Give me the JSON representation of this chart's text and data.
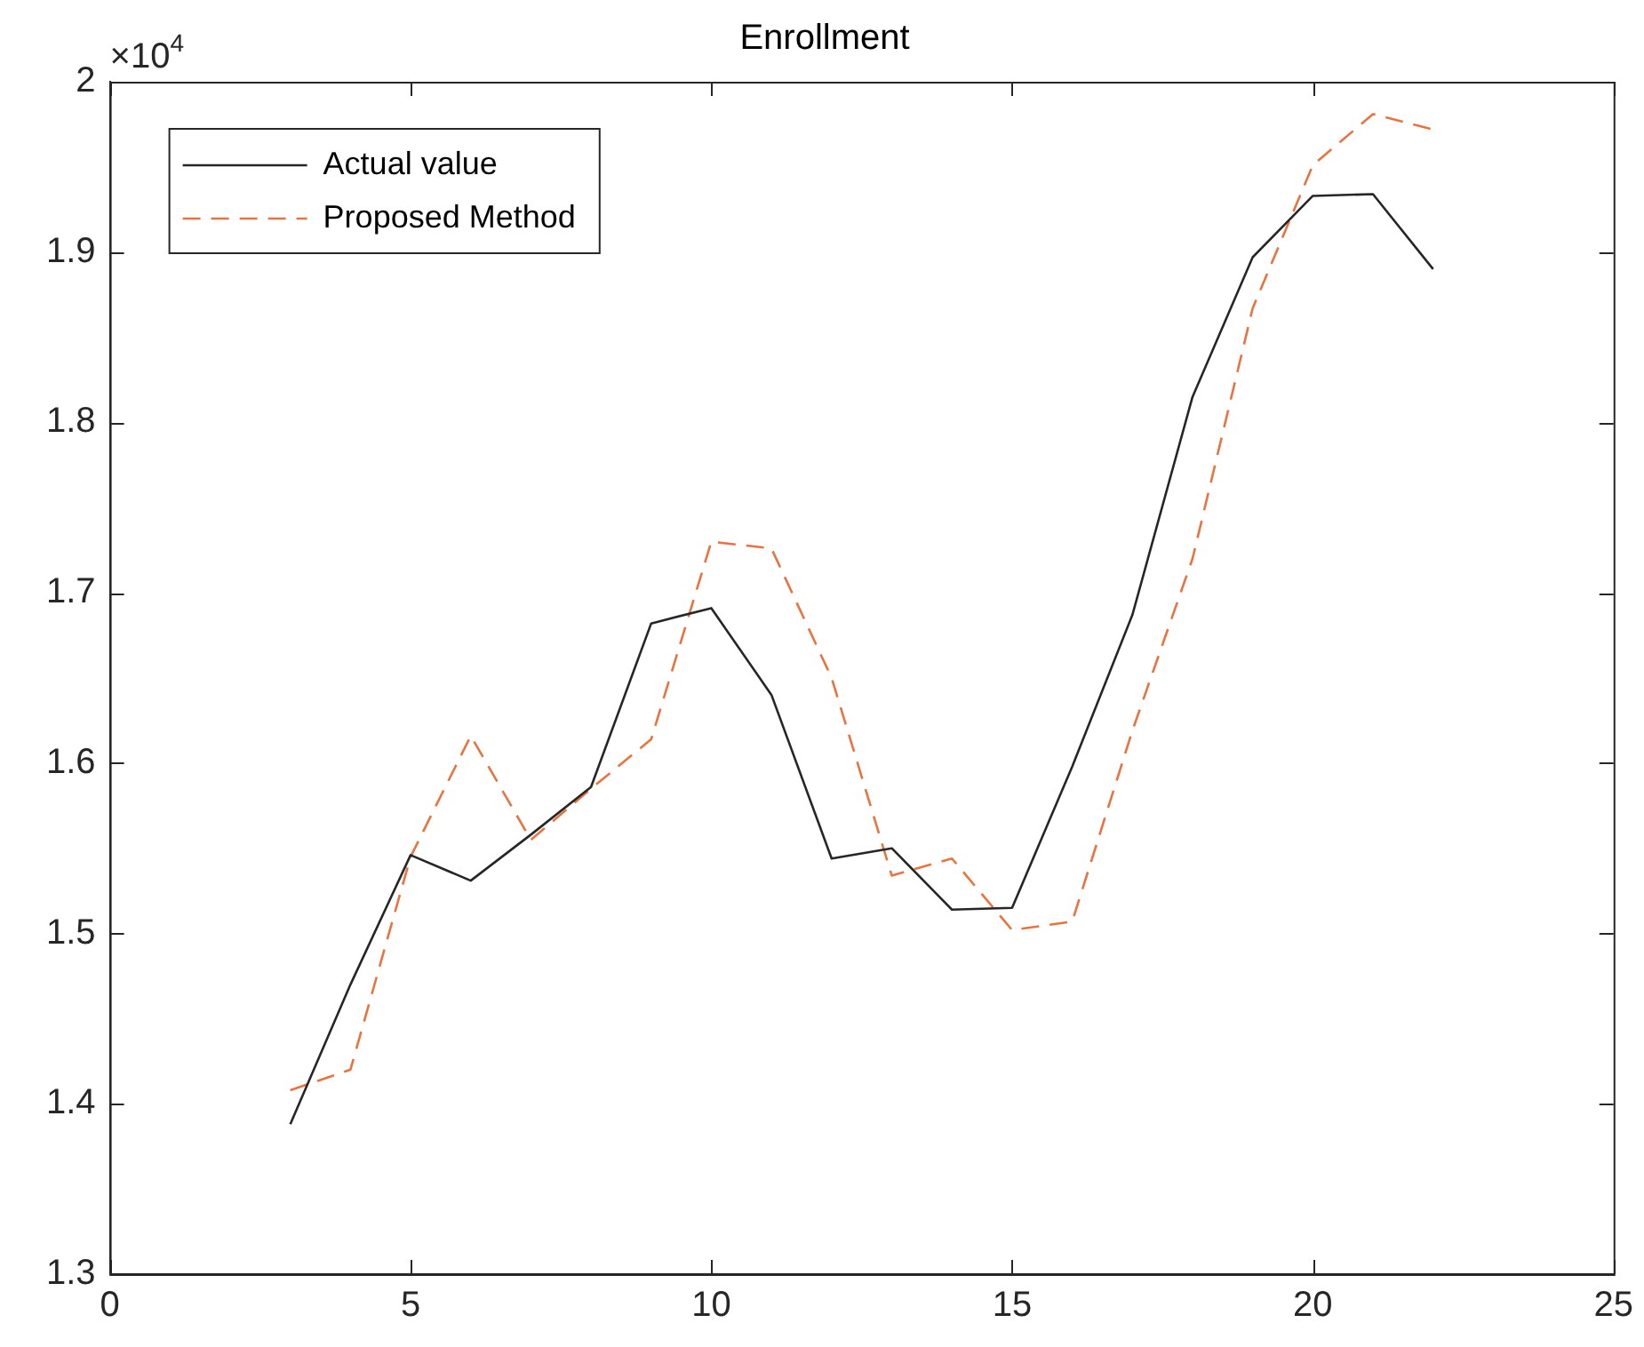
{
  "chart_data": {
    "type": "line",
    "title": "Enrollment",
    "annotations": [
      "×10$^{4}$"
    ],
    "x": [
      3,
      4,
      5,
      6,
      7,
      8,
      9,
      10,
      11,
      12,
      13,
      14,
      15,
      16,
      17,
      18,
      19,
      20,
      21,
      22
    ],
    "series": [
      {
        "name": "Actual value",
        "color": "#262626",
        "line_style": "solid",
        "values": [
          1.388,
          1.47,
          1.546,
          1.531,
          1.558,
          1.586,
          1.682,
          1.691,
          1.64,
          1.544,
          1.55,
          1.514,
          1.515,
          1.598,
          1.687,
          1.815,
          1.897,
          1.933,
          1.934,
          1.89
        ]
      },
      {
        "name": "Proposed Method",
        "color": "#e8733f",
        "line_style": "dashed",
        "values": [
          1.408,
          1.42,
          1.545,
          1.616,
          1.555,
          1.585,
          1.614,
          1.73,
          1.726,
          1.65,
          1.534,
          1.544,
          1.502,
          1.507,
          1.619,
          1.72,
          1.867,
          1.951,
          1.981,
          1.972
        ]
      }
    ],
    "xlim": [
      0,
      25
    ],
    "xticks": [
      0,
      5,
      10,
      15,
      20,
      25
    ],
    "ylim": [
      1.3,
      2
    ],
    "yticks": [
      1.3,
      1.4,
      1.5,
      1.6,
      1.7,
      1.8,
      1.9,
      2
    ],
    "grid": false,
    "legend": "top left",
    "marker": "none"
  }
}
